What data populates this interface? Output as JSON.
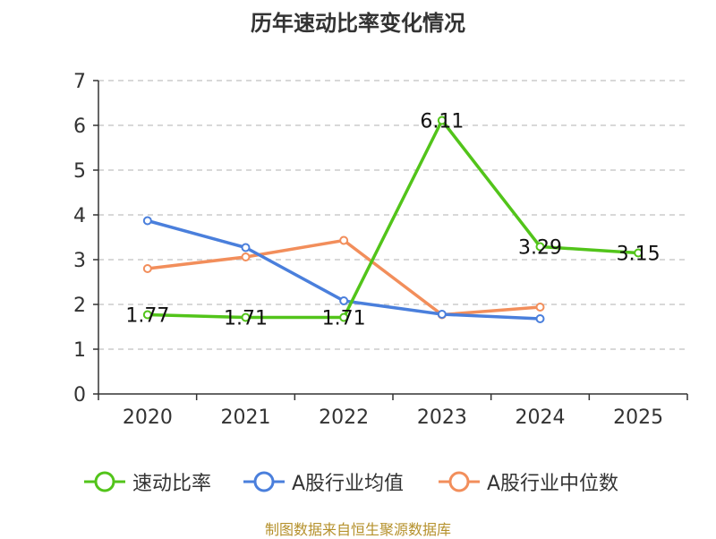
{
  "page": {
    "title": "历年速动比率变化情况",
    "source": "制图数据来自恒生聚源数据库"
  },
  "legend_items": [
    {
      "label": "速动比率",
      "color": "#52c41a"
    },
    {
      "label": "A股行业均值",
      "color": "#4a7fdc"
    },
    {
      "label": "A股行业中位数",
      "color": "#f28e5b"
    }
  ],
  "chart_data": {
    "type": "line",
    "title": "历年速动比率变化情况",
    "xlabel": "",
    "ylabel": "",
    "categories": [
      "2020",
      "2021",
      "2022",
      "2023",
      "2024",
      "2025"
    ],
    "y_ticks": [
      "0",
      "1",
      "2",
      "3",
      "4",
      "5",
      "6",
      "7"
    ],
    "ylim": [
      0,
      7
    ],
    "grid": true,
    "legend_position": "bottom",
    "series": [
      {
        "name": "速动比率",
        "color": "#52c41a",
        "values": [
          1.77,
          1.71,
          1.71,
          6.11,
          3.29,
          3.15
        ],
        "labels": [
          "1.77",
          "1.71",
          "1.71",
          "6.11",
          "3.29",
          "3.15"
        ]
      },
      {
        "name": "A股行业均值",
        "color": "#4a7fdc",
        "values": [
          3.87,
          3.27,
          2.08,
          1.78,
          1.68,
          null
        ]
      },
      {
        "name": "A股行业中位数",
        "color": "#f28e5b",
        "values": [
          2.8,
          3.06,
          3.43,
          1.77,
          1.94,
          null
        ]
      }
    ]
  }
}
